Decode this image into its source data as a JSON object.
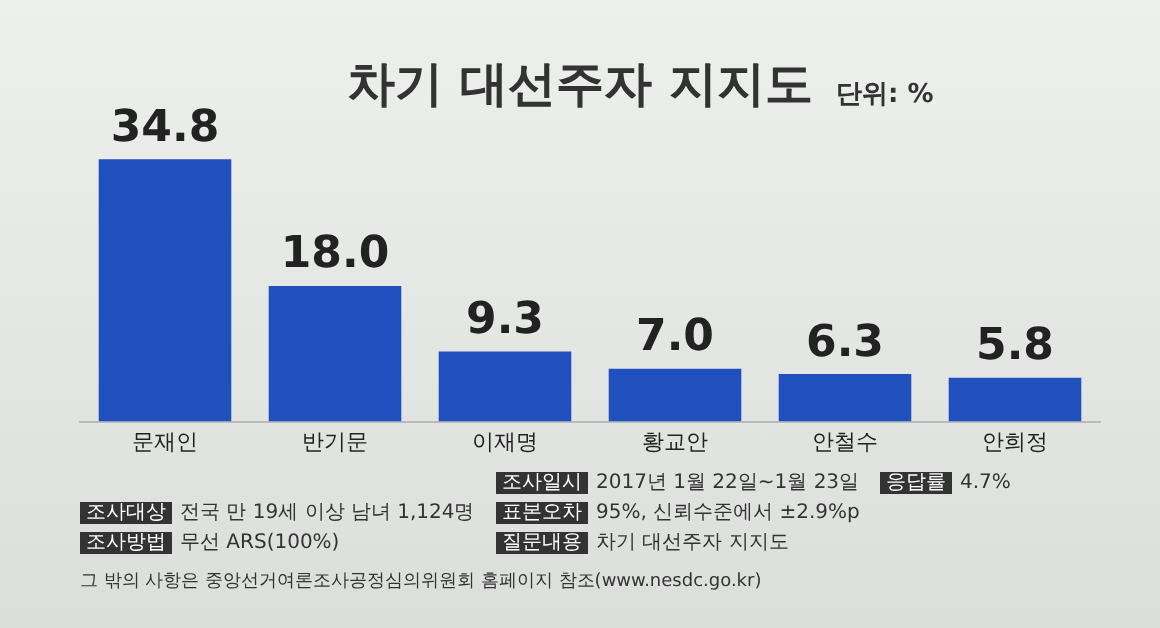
{
  "chart_data": {
    "type": "bar",
    "title": "차기 대선주자 지지도",
    "subtitle": "단위: %",
    "categories": [
      "문재인",
      "반기문",
      "이재명",
      "황교안",
      "안철수",
      "안희정"
    ],
    "values": [
      34.8,
      18.0,
      9.3,
      7.0,
      6.3,
      5.8
    ],
    "value_labels": [
      "34.8",
      "18.0",
      "9.3",
      "7.0",
      "6.3",
      "5.8"
    ],
    "color": "#1f50bd",
    "grid": false,
    "legend": false,
    "annotations": [
      "조사일시 2017년 1월 22일~1월 23일",
      "응답률 4.7%",
      "조사대상 전국 만 19세 이상 남녀 1,124명",
      "표본오차 95%, 신뢰수준에서 ±2.9%p",
      "조사방법 무선 ARS(100%)",
      "질문내용 차기 대선주자 지지도",
      "그 밖의 사항은 중앙선거여론조사공정심의위원회 홈페이지 참조(www.nesdc.go.kr)"
    ]
  }
}
